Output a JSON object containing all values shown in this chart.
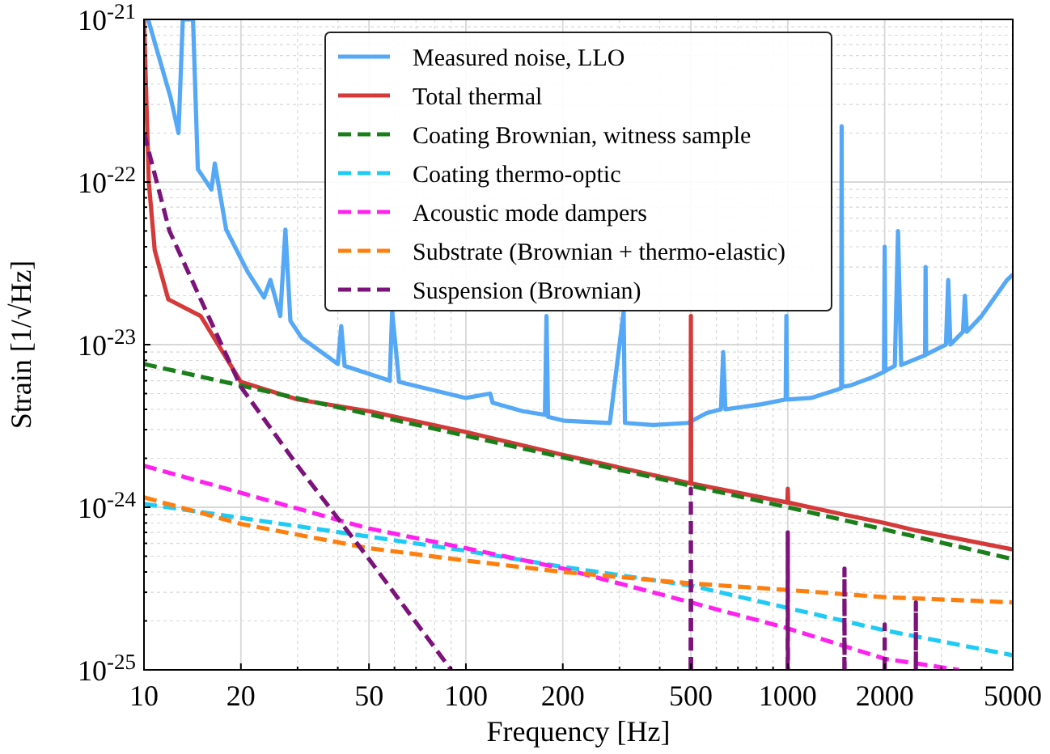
{
  "chart_data": {
    "type": "line",
    "xlabel": "Frequency [Hz]",
    "ylabel": "Strain [1/√Hz]",
    "log": "xy",
    "grid": true,
    "legend": "top",
    "xlim": [
      10,
      5000
    ],
    "ylim": [
      1e-25,
      1e-21
    ],
    "xticks": [
      10,
      20,
      {
        "value": 30,
        "label": null
      },
      {
        "value": 40,
        "label": null
      },
      50,
      {
        "value": 60,
        "label": null
      },
      {
        "value": 70,
        "label": null
      },
      {
        "value": 80,
        "label": null
      },
      {
        "value": 90,
        "label": null
      },
      100,
      200,
      {
        "value": 300,
        "label": null
      },
      {
        "value": 400,
        "label": null
      },
      500,
      {
        "value": 600,
        "label": null
      },
      {
        "value": 700,
        "label": null
      },
      {
        "value": 800,
        "label": null
      },
      {
        "value": 900,
        "label": null
      },
      1000,
      2000,
      {
        "value": 3000,
        "label": null
      },
      {
        "value": 4000,
        "label": null
      },
      5000
    ],
    "yticks": [
      {
        "value": 1e-21,
        "label": "10$^{-21}$"
      },
      {
        "value": 2e-22,
        "label": null
      },
      {
        "value": 3e-22,
        "label": null
      },
      {
        "value": 4e-22,
        "label": null
      },
      {
        "value": 5e-22,
        "label": null
      },
      {
        "value": 6e-22,
        "label": null
      },
      {
        "value": 7e-22,
        "label": null
      },
      {
        "value": 8e-22,
        "label": null
      },
      {
        "value": 9e-22,
        "label": null
      },
      {
        "value": 1e-22,
        "label": "10$^{-22}$"
      },
      {
        "value": 2e-23,
        "label": null
      },
      {
        "value": 3e-23,
        "label": null
      },
      {
        "value": 4e-23,
        "label": null
      },
      {
        "value": 5e-23,
        "label": null
      },
      {
        "value": 6e-23,
        "label": null
      },
      {
        "value": 7e-23,
        "label": null
      },
      {
        "value": 8e-23,
        "label": null
      },
      {
        "value": 9e-23,
        "label": null
      },
      {
        "value": 1e-23,
        "label": "10$^{-23}$"
      },
      {
        "value": 2e-24,
        "label": null
      },
      {
        "value": 3e-24,
        "label": null
      },
      {
        "value": 4e-24,
        "label": null
      },
      {
        "value": 5e-24,
        "label": null
      },
      {
        "value": 6e-24,
        "label": null
      },
      {
        "value": 7e-24,
        "label": null
      },
      {
        "value": 8e-24,
        "label": null
      },
      {
        "value": 9e-24,
        "label": null
      },
      {
        "value": 1e-24,
        "label": "10$^{-24}$"
      },
      {
        "value": 2e-25,
        "label": null
      },
      {
        "value": 3e-25,
        "label": null
      },
      {
        "value": 4e-25,
        "label": null
      },
      {
        "value": 5e-25,
        "label": null
      },
      {
        "value": 6e-25,
        "label": null
      },
      {
        "value": 7e-25,
        "label": null
      },
      {
        "value": 8e-25,
        "label": null
      },
      {
        "value": 9e-25,
        "label": null
      },
      {
        "value": 1e-25,
        "label": "10$^{-25}$"
      }
    ],
    "series": [
      {
        "name": "Measured noise, LLO",
        "color": "#55a8f5",
        "line_style": "solid",
        "x": [
          10.3,
          12.1,
          12.8,
          13.2,
          14.2,
          14.7,
          16.2,
          16.6,
          18,
          21,
          23.6,
          24.7,
          26.5,
          27.5,
          28.5,
          30.9,
          40,
          41,
          42,
          58,
          59,
          62,
          100,
          119,
          121,
          150,
          176,
          178,
          180,
          203,
          280,
          309,
          312,
          381,
          490,
          560,
          620,
          630,
          640,
          830,
          985,
          990,
          995,
          1180,
          1430,
          1465,
          1470,
          1475,
          1560,
          1830,
          1990,
          2000,
          2010,
          2150,
          2200,
          2250,
          2670,
          2680,
          2690,
          3100,
          3150,
          3200,
          3500,
          3550,
          3600,
          4000,
          4800,
          5000
        ],
        "values": [
          1e-21,
          3.3e-22,
          2e-22,
          1e-21,
          1e-21,
          1.2e-22,
          9e-23,
          1.3e-22,
          5.1e-23,
          2.8e-23,
          1.95e-23,
          2.5e-23,
          1.5e-23,
          5.1e-23,
          1.4e-23,
          1.1e-23,
          7.6e-24,
          1.3e-23,
          7.4e-24,
          6e-24,
          1.6e-23,
          5.9e-24,
          4.7e-24,
          5e-24,
          4.4e-24,
          3.9e-24,
          3.7e-24,
          1.5e-23,
          3.6e-24,
          3.4e-24,
          3.3e-24,
          1.6e-23,
          3.3e-24,
          3.2e-24,
          3.3e-24,
          3.8e-24,
          4e-24,
          9e-24,
          4e-24,
          4.3e-24,
          4.6e-24,
          1.5e-23,
          4.6e-24,
          4.7e-24,
          5.3e-24,
          5.4e-24,
          2.2e-22,
          5.5e-24,
          5.6e-24,
          6.3e-24,
          6.8e-24,
          4e-23,
          6.9e-24,
          7.4e-24,
          5e-23,
          7.5e-24,
          8.6e-24,
          3e-23,
          8.7e-24,
          1e-23,
          2.5e-23,
          1e-23,
          1.2e-23,
          2e-23,
          1.2e-23,
          1.5e-23,
          2.5e-23,
          2.7e-23
        ]
      },
      {
        "name": "Total thermal",
        "color": "#d43a3a",
        "line_style": "solid",
        "x": [
          10,
          10.35,
          10.8,
          11.9,
          15,
          20,
          30,
          50,
          100,
          200,
          499,
          500,
          501,
          997,
          1000,
          1003,
          1500,
          2000,
          2500,
          5000
        ],
        "values": [
          1e-21,
          1e-22,
          3.8e-23,
          1.9e-23,
          1.5e-23,
          5.9e-24,
          4.6e-24,
          3.9e-24,
          2.9e-24,
          2.1e-24,
          1.4e-24,
          1.5e-23,
          1.4e-24,
          1.07e-24,
          1.3e-24,
          1.07e-24,
          9e-25,
          8e-25,
          7.2e-25,
          5.5e-25
        ]
      },
      {
        "name": "Coating Brownian, witness sample",
        "color": "#1a7f1a",
        "line_style": "dashed",
        "x": [
          10,
          100,
          1000,
          5000
        ],
        "values": [
          7.6e-24,
          2.75e-24,
          1e-24,
          4.8e-25
        ]
      },
      {
        "name": "Coating thermo-optic",
        "color": "#1ecbf5",
        "line_style": "dashed",
        "x": [
          10,
          50,
          100,
          200,
          500,
          1000,
          2000,
          5000
        ],
        "values": [
          1.05e-24,
          6.6e-25,
          5.4e-25,
          4.3e-25,
          3.3e-25,
          2.4e-25,
          1.75e-25,
          1.23e-25
        ]
      },
      {
        "name": "Acoustic mode dampers",
        "color": "#ff22ee",
        "line_style": "dashed",
        "x": [
          10,
          50,
          100,
          200,
          500,
          1000,
          2000,
          3400
        ],
        "values": [
          1.8e-24,
          7.4e-25,
          5.6e-25,
          4.2e-25,
          2.6e-25,
          1.8e-25,
          1.17e-25,
          1e-25
        ]
      },
      {
        "name": "Substrate (Brownian + thermo-elastic)",
        "color": "#ff7f0e",
        "line_style": "dashed",
        "x": [
          10,
          20,
          50,
          100,
          200,
          500,
          1000,
          2000,
          5000
        ],
        "values": [
          1.15e-24,
          7.9e-25,
          5.6e-25,
          4.7e-25,
          4e-25,
          3.4e-25,
          3.1e-25,
          2.8e-25,
          2.6e-25
        ]
      },
      {
        "name": "Suspension (Brownian)",
        "color": "#7b137b",
        "line_style": "dashed",
        "x": [
          10,
          12,
          15,
          20,
          30,
          50,
          90,
          95,
          499,
          500,
          501,
          600,
          999,
          1000,
          1001,
          1100,
          1499,
          1500,
          1501,
          1600,
          1999,
          2000,
          2001,
          2100,
          2499,
          2500,
          2501
        ],
        "values": [
          2e-22,
          5e-23,
          1.9e-23,
          5.5e-24,
          1.8e-24,
          4.8e-25,
          1e-25,
          null,
          1e-25,
          1.3e-24,
          1e-25,
          null,
          1e-25,
          7e-25,
          1e-25,
          null,
          1e-25,
          4.2e-25,
          1e-25,
          null,
          1e-25,
          1.9e-25,
          1e-25,
          null,
          1e-25,
          2.6e-25,
          1e-25
        ]
      }
    ]
  }
}
